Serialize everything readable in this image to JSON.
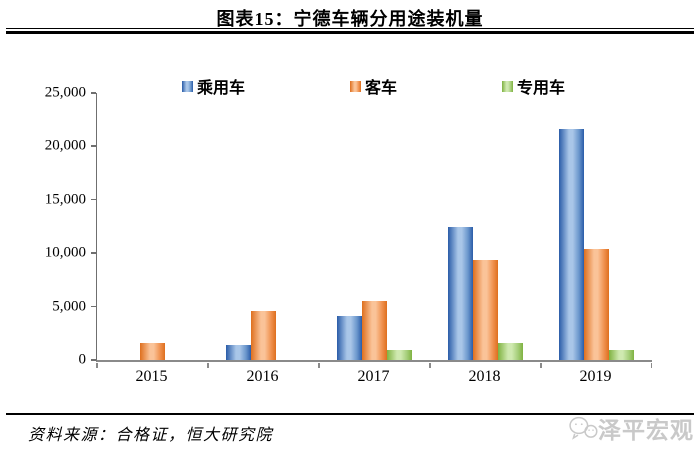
{
  "title": "图表15：宁德车辆分用途装机量",
  "chart_data": {
    "type": "bar",
    "categories": [
      "2015",
      "2016",
      "2017",
      "2018",
      "2019"
    ],
    "series": [
      {
        "key": "passenger-car",
        "name": "乘用车",
        "color": "#6A96CC",
        "color_light": "#A9C6E8",
        "color_dark": "#2A5CA8",
        "values": [
          0,
          1400,
          4100,
          12500,
          21600
        ]
      },
      {
        "key": "bus",
        "name": "客车",
        "color": "#F09250",
        "color_light": "#FAC398",
        "color_dark": "#DE6F1E",
        "values": [
          1600,
          4600,
          5500,
          9400,
          10400
        ]
      },
      {
        "key": "special-vehicle",
        "name": "专用车",
        "color": "#A5CE79",
        "color_light": "#CFE9B0",
        "color_dark": "#7FB241",
        "values": [
          0,
          0,
          900,
          1600,
          900
        ]
      }
    ],
    "title": "宁德车辆分用途装机量",
    "xlabel": "",
    "ylabel": "",
    "ylim": [
      0,
      25000
    ],
    "ytick_labels": [
      "0",
      "5,000",
      "10,000",
      "15,000",
      "20,000",
      "25,000"
    ],
    "legend_position": "top",
    "grid": false,
    "axis_color": "#8a8a8a"
  },
  "footer": {
    "source": "资料来源：合格证，恒大研究院",
    "watermark": "泽平宏观"
  }
}
